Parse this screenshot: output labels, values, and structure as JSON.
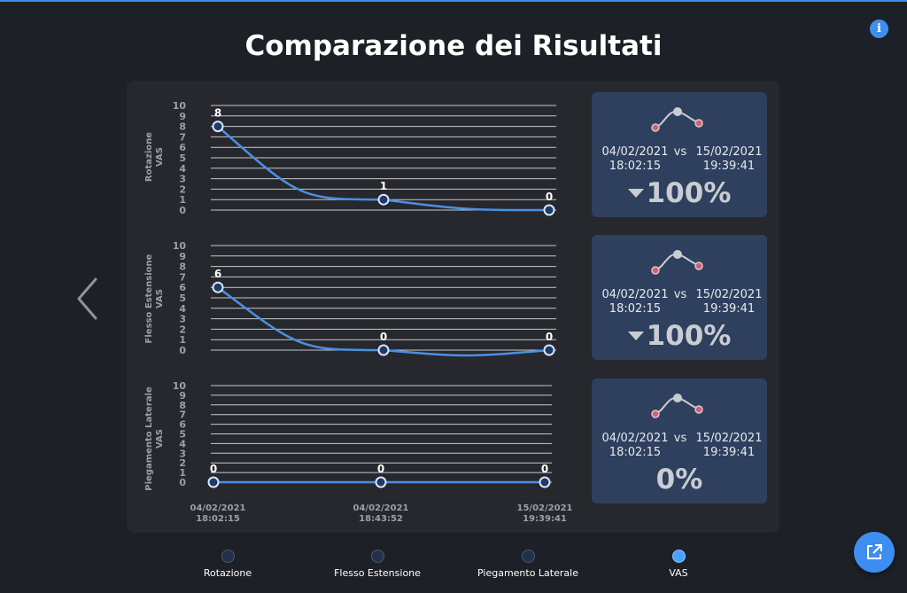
{
  "page": {
    "title": "Comparazione dei Risultati"
  },
  "icons": {
    "info": "info-icon",
    "back": "chevron-left-icon",
    "share": "external-link-icon",
    "trend": "sparkline-icon"
  },
  "colors": {
    "accent": "#3d8ef0",
    "line": "#4a90e2",
    "card": "#2f405e",
    "spark_end": "#e8556d"
  },
  "chart_data": [
    {
      "type": "line",
      "ylabel": [
        "Rotazione",
        "VAS"
      ],
      "yticks": [
        "0",
        "1",
        "2",
        "3",
        "4",
        "5",
        "6",
        "7",
        "8",
        "9",
        "10"
      ],
      "ylim": [
        0,
        10
      ],
      "values": [
        8,
        1,
        0
      ],
      "value_labels": [
        "8",
        "1",
        "0"
      ]
    },
    {
      "type": "line",
      "ylabel": [
        "Flesso Estensione",
        "VAS"
      ],
      "yticks": [
        "0",
        "1",
        "2",
        "3",
        "4",
        "5",
        "6",
        "7",
        "8",
        "9",
        "10"
      ],
      "ylim": [
        0,
        10
      ],
      "values": [
        6,
        0,
        0
      ],
      "value_labels": [
        "6",
        "0",
        "0"
      ]
    },
    {
      "type": "line",
      "ylabel": [
        "Piegamento Laterale",
        "VAS"
      ],
      "yticks": [
        "0",
        "1",
        "2",
        "3",
        "4",
        "5",
        "6",
        "7",
        "8",
        "9",
        "10"
      ],
      "ylim": [
        0,
        10
      ],
      "values": [
        0,
        0,
        0
      ],
      "value_labels": [
        "0",
        "0",
        "0"
      ]
    }
  ],
  "x_labels": [
    {
      "date": "04/02/2021",
      "time": "18:02:15"
    },
    {
      "date": "04/02/2021",
      "time": "18:43:52"
    },
    {
      "date": "15/02/2021",
      "time": "19:39:41"
    }
  ],
  "cards": [
    {
      "from_date": "04/02/2021",
      "from_time": "18:02:15",
      "vs": "vs",
      "to_date": "15/02/2021",
      "to_time": "19:39:41",
      "percent": "100%",
      "decrease": true
    },
    {
      "from_date": "04/02/2021",
      "from_time": "18:02:15",
      "vs": "vs",
      "to_date": "15/02/2021",
      "to_time": "19:39:41",
      "percent": "100%",
      "decrease": true
    },
    {
      "from_date": "04/02/2021",
      "from_time": "18:02:15",
      "vs": "vs",
      "to_date": "15/02/2021",
      "to_time": "19:39:41",
      "percent": "0%",
      "decrease": false
    }
  ],
  "legend": [
    {
      "label": "Rotazione",
      "active": false
    },
    {
      "label": "Flesso Estensione",
      "active": false
    },
    {
      "label": "Piegamento Laterale",
      "active": false
    },
    {
      "label": "VAS",
      "active": true
    }
  ]
}
